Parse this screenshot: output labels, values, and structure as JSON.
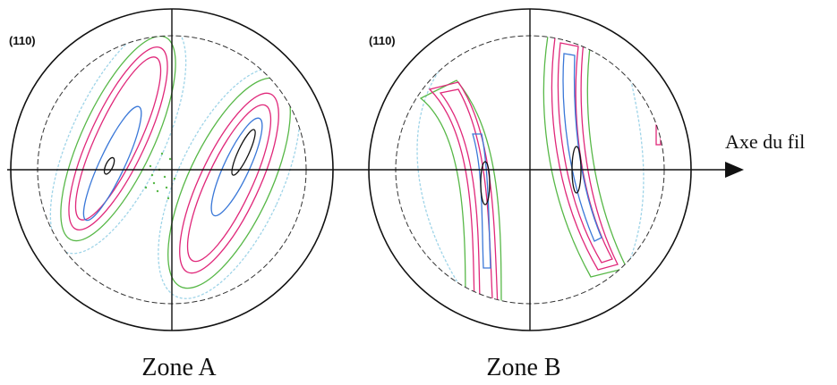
{
  "figure": {
    "axis_label": "Axe du fil",
    "colors": {
      "outline": "#111111",
      "level_low_light": "#9fd4e8",
      "level_low": "#58b848",
      "level_mid": "#e0287a",
      "level_high": "#3a78d8",
      "level_max": "#111111"
    },
    "pole_figures": [
      {
        "id": "A",
        "plane": "(110)",
        "zone_label": "Zone A"
      },
      {
        "id": "B",
        "plane": "(110)",
        "zone_label": "Zone B"
      }
    ]
  }
}
